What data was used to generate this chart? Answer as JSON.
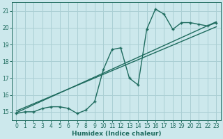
{
  "xlabel": "Humidex (Indice chaleur)",
  "bg_color": "#cce8ec",
  "grid_color": "#aacfd4",
  "line_color": "#1e6b5e",
  "xlim": [
    -0.5,
    23.5
  ],
  "ylim": [
    14.5,
    21.5
  ],
  "xticks": [
    0,
    1,
    2,
    3,
    4,
    5,
    6,
    7,
    8,
    9,
    10,
    11,
    12,
    13,
    14,
    15,
    16,
    17,
    18,
    19,
    20,
    21,
    22,
    23
  ],
  "yticks": [
    15,
    16,
    17,
    18,
    19,
    20,
    21
  ],
  "curve1_x": [
    0,
    1,
    2,
    3,
    4,
    5,
    6,
    7,
    8,
    9,
    10,
    11,
    12,
    13,
    14,
    15,
    16,
    17,
    18,
    19,
    20,
    21,
    22,
    23
  ],
  "curve1_y": [
    14.9,
    15.0,
    15.0,
    15.2,
    15.3,
    15.3,
    15.2,
    14.9,
    15.1,
    15.6,
    17.5,
    18.7,
    18.8,
    17.0,
    16.6,
    19.9,
    21.1,
    20.8,
    19.9,
    20.3,
    20.3,
    20.2,
    20.1,
    20.3
  ],
  "line1_x": [
    0,
    23
  ],
  "line1_y": [
    14.95,
    20.35
  ],
  "line2_x": [
    0,
    23
  ],
  "line2_y": [
    15.05,
    20.05
  ]
}
